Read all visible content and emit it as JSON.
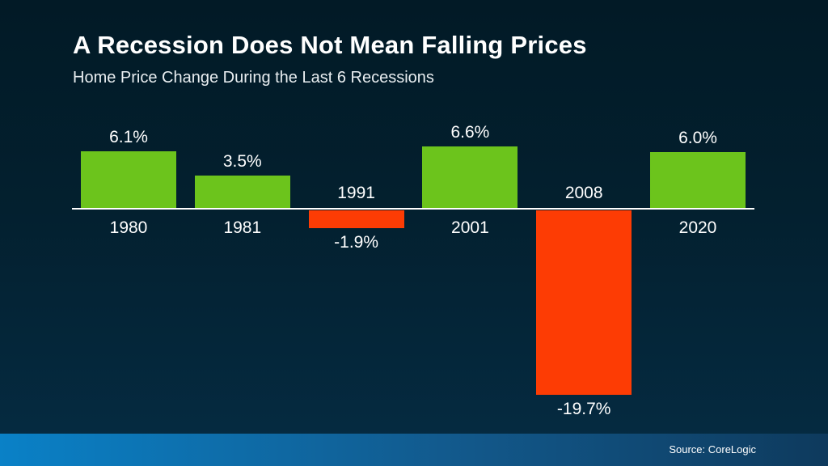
{
  "header": {
    "title": "A Recession Does Not Mean Falling Prices",
    "subtitle": "Home Price Change During the Last 6 Recessions"
  },
  "footer": {
    "source": "Source: CoreLogic"
  },
  "colors": {
    "positive_bar": "#6cc41c",
    "negative_bar": "#fd3c04",
    "axis": "#ffffff",
    "background_top": "#021a26",
    "background_bottom": "#063049",
    "footer_band_left": "#0a81c7",
    "footer_band_right": "#0e3a5d",
    "text": "#ffffff"
  },
  "chart_data": {
    "type": "bar",
    "title": "A Recession Does Not Mean Falling Prices",
    "subtitle": "Home Price Change During the Last 6 Recessions",
    "categories": [
      "1980",
      "1981",
      "1991",
      "2001",
      "2008",
      "2020"
    ],
    "values": [
      6.1,
      3.5,
      -1.9,
      6.6,
      -19.7,
      6.0
    ],
    "data_labels": [
      "6.1%",
      "3.5%",
      "-1.9%",
      "6.6%",
      "-19.7%",
      "6.0%"
    ],
    "xlabel": "",
    "ylabel": "",
    "ylim": [
      -22,
      9
    ],
    "grid": false,
    "legend": false,
    "baseline_value": 0,
    "positive_color": "#6cc41c",
    "negative_color": "#fd3c04",
    "source": "Source: CoreLogic"
  }
}
